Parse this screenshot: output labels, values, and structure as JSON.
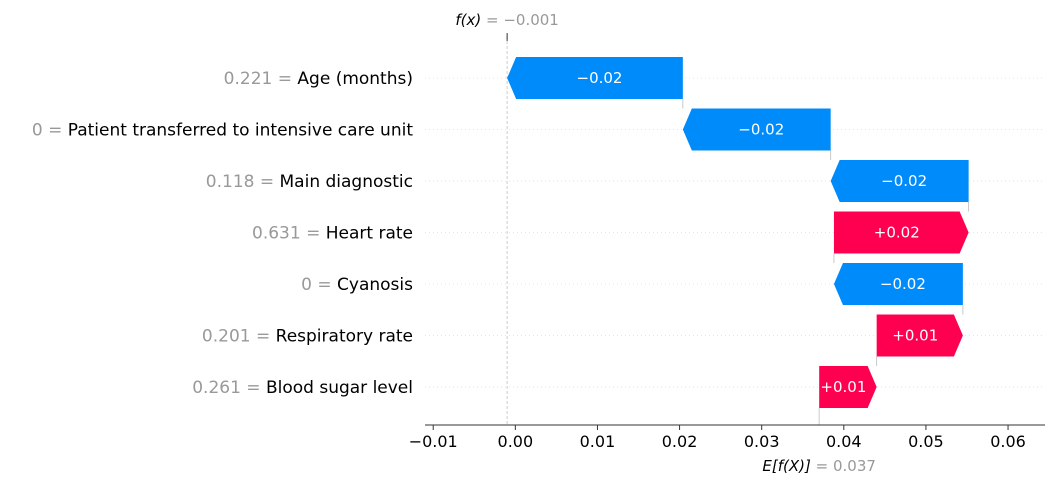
{
  "chart_data": {
    "type": "waterfall",
    "base_value": 0.037,
    "output_value": -0.001,
    "base_label_prefix": "E[f(X)]",
    "base_label_value": "= 0.037",
    "output_label_prefix": "f(x)",
    "output_label_value": "= −0.001",
    "features": [
      {
        "value": "0.221",
        "name": "Age (months)",
        "label": "−0.02",
        "start": 0.0204,
        "end": -0.001
      },
      {
        "value": "0",
        "name": "Patient transferred to intensive care unit",
        "label": "−0.02",
        "start": 0.0384,
        "end": 0.0204
      },
      {
        "value": "0.118",
        "name": "Main diagnostic",
        "label": "−0.02",
        "start": 0.0552,
        "end": 0.0384
      },
      {
        "value": "0.631",
        "name": "Heart rate",
        "label": "+0.02",
        "start": 0.0388,
        "end": 0.0552
      },
      {
        "value": "0",
        "name": "Cyanosis",
        "label": "−0.02",
        "start": 0.0545,
        "end": 0.0388
      },
      {
        "value": "0.201",
        "name": "Respiratory rate",
        "label": "+0.01",
        "start": 0.044,
        "end": 0.0545
      },
      {
        "value": "0.261",
        "name": "Blood sugar level",
        "label": "+0.01",
        "start": 0.037,
        "end": 0.044
      }
    ],
    "xlim": [
      -0.011,
      0.0645
    ],
    "xticks": [
      -0.01,
      0.0,
      0.01,
      0.02,
      0.03,
      0.04,
      0.05,
      0.06
    ],
    "xtick_labels": [
      "−0.01",
      "0.00",
      "0.01",
      "0.02",
      "0.03",
      "0.04",
      "0.05",
      "0.06"
    ],
    "colors": {
      "positive": "#ff0051",
      "negative": "#008bfb",
      "label_value": "#999999",
      "guide": "#cccccc"
    },
    "grid": false
  }
}
